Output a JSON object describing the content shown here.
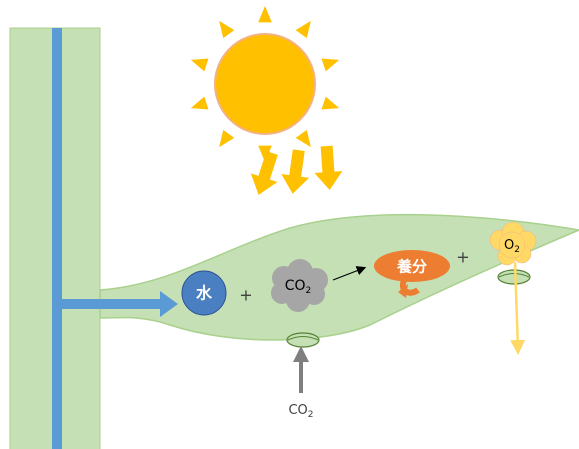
{
  "labels": {
    "water": "水",
    "plus_1": "+",
    "co2_in_leaf": {
      "text": "CO",
      "subscript": "2"
    },
    "nutrients": "養分",
    "plus_2": "+",
    "oxygen": {
      "text": "O",
      "subscript": "2"
    },
    "co2_outside": {
      "text": "CO",
      "subscript": "2"
    }
  }
}
